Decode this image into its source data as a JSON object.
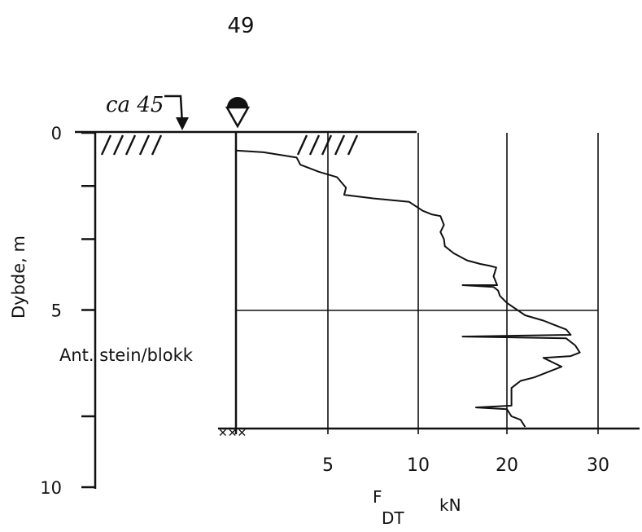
{
  "page_number": "49",
  "chart_data": {
    "type": "line",
    "title": "",
    "xlabel_main": "F",
    "xlabel_sub": "DT",
    "xlabel_unit": "kN",
    "ylabel": "Dybde, m",
    "y_ticks": [
      "0",
      "5",
      "10"
    ],
    "y_tick_values": [
      0,
      5,
      10
    ],
    "x_ticks": [
      "5",
      "10",
      "20",
      "30"
    ],
    "x_tick_values": [
      5,
      10,
      20,
      30
    ],
    "ylim": [
      0,
      10
    ],
    "xlim": [
      0,
      35
    ],
    "grid": true,
    "annotations": {
      "ground_level": "ca 45",
      "boulder_note": "Ant. stein/blokk",
      "stop_depth_m": 8.35,
      "boulder_depth_m": 5.0
    },
    "series": [
      {
        "x": [
          0,
          1.5,
          3.3,
          3.5,
          4.5,
          5.5,
          6.0,
          5.9,
          7.5,
          9.5,
          10.5,
          11.5,
          12.5,
          12.9,
          12.5,
          12.9,
          13.0,
          13.5,
          14.0,
          15.5,
          17.0,
          18.0,
          18.8,
          18.5,
          18.9,
          15.0,
          18.5,
          19.0,
          19.2,
          20.0,
          22.0,
          24.0,
          25.0,
          26.5,
          27.0,
          15.0,
          26.5,
          27.5,
          28.0,
          27.0,
          24.0,
          26.0,
          23.0,
          21.5,
          20.5,
          20.5,
          20.5,
          16.5,
          20.0,
          20.5,
          21.5,
          22.0
        ],
        "y": [
          0.5,
          0.55,
          0.7,
          0.9,
          1.1,
          1.25,
          1.55,
          1.75,
          1.85,
          1.95,
          2.2,
          2.3,
          2.35,
          2.6,
          2.8,
          3.0,
          3.2,
          3.3,
          3.4,
          3.6,
          3.7,
          3.75,
          3.8,
          4.05,
          4.3,
          4.3,
          4.35,
          4.45,
          4.6,
          4.8,
          5.15,
          5.3,
          5.4,
          5.55,
          5.7,
          5.75,
          5.8,
          6.0,
          6.2,
          6.3,
          6.35,
          6.6,
          6.9,
          7.0,
          7.2,
          7.5,
          7.7,
          7.75,
          7.8,
          8.0,
          8.1,
          8.3
        ]
      }
    ]
  }
}
